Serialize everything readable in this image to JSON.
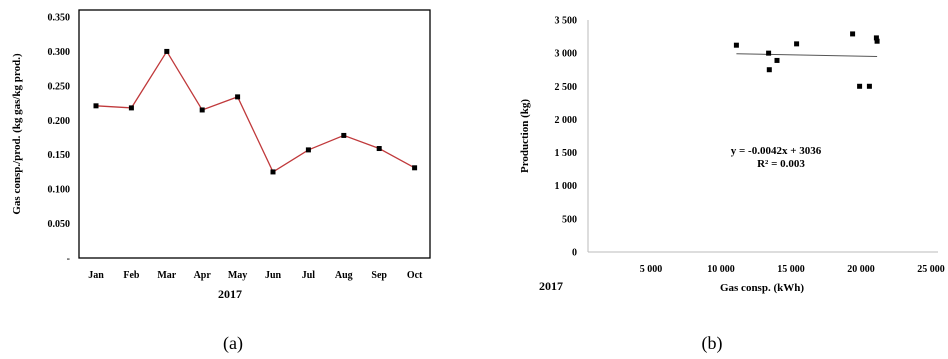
{
  "chart_data": [
    {
      "type": "line",
      "ylabel": "Gas consp./prod. (kg gas/kg prod.)",
      "xlabel": "2017",
      "categories": [
        "Jan",
        "Feb",
        "Mar",
        "Apr",
        "May",
        "Jun",
        "Jul",
        "Aug",
        "Sep",
        "Oct"
      ],
      "values": [
        0.221,
        0.218,
        0.3,
        0.215,
        0.234,
        0.125,
        0.157,
        0.178,
        0.159,
        0.131
      ],
      "ylim": [
        0,
        0.35
      ],
      "yticks": [
        "0.350",
        "0.300",
        "0.250",
        "0.200",
        "0.150",
        "0.100",
        "0.050",
        "-"
      ],
      "line_color": "#c0393b",
      "marker_color": "#000000",
      "caption": "(a)"
    },
    {
      "type": "scatter",
      "ylabel": "Production (kg)",
      "xlabel": "Gas consp. (kWh)",
      "corner_label": "2017",
      "xlim": [
        0,
        25000
      ],
      "ylim": [
        0,
        3500
      ],
      "xticks": [
        "5 000",
        "10 000",
        "15 000",
        "20 000",
        "25 000"
      ],
      "yticks": [
        "3 500",
        "3 000",
        "2 500",
        "2 000",
        "1 500",
        "1 000",
        "500",
        "0"
      ],
      "points": [
        {
          "x": 10600,
          "y": 3120
        },
        {
          "x": 12900,
          "y": 3000
        },
        {
          "x": 12950,
          "y": 2750
        },
        {
          "x": 13500,
          "y": 2890
        },
        {
          "x": 14900,
          "y": 3140
        },
        {
          "x": 18900,
          "y": 3290
        },
        {
          "x": 19400,
          "y": 2500
        },
        {
          "x": 20100,
          "y": 2500
        },
        {
          "x": 20600,
          "y": 3230
        },
        {
          "x": 20650,
          "y": 3180
        }
      ],
      "trendline": {
        "slope": -0.0042,
        "intercept": 3036,
        "x_from": 10600,
        "x_to": 20650
      },
      "equation": "y = -0.0042x + 3036",
      "r_squared": "R² = 0.003",
      "marker_color": "#000000",
      "caption": "(b)"
    }
  ]
}
